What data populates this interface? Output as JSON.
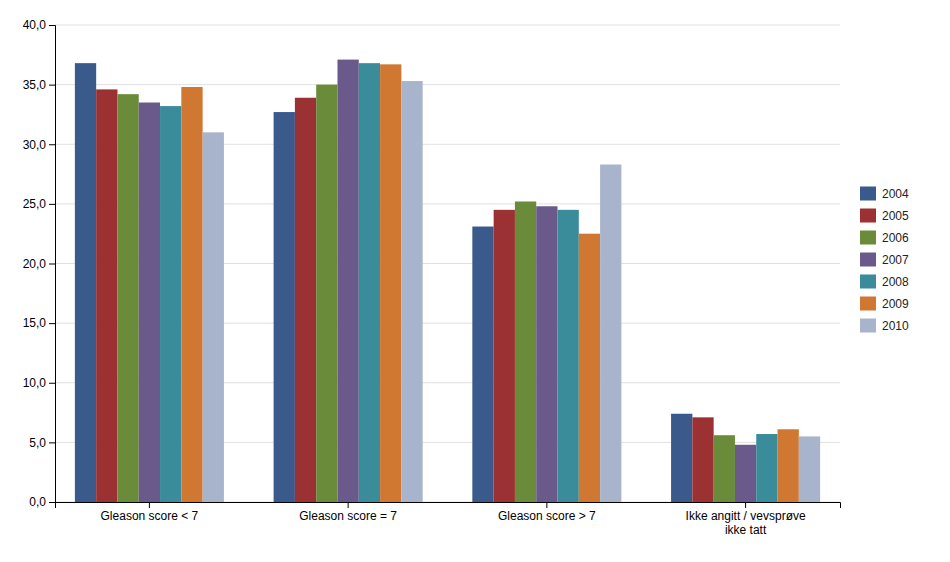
{
  "chart_data": {
    "type": "bar",
    "categories": [
      "Gleason score < 7",
      "Gleason score = 7",
      "Gleason score > 7",
      "Ikke angitt / vevsprøve\nikke tatt"
    ],
    "series": [
      {
        "name": "2004",
        "color": "#3A5A8C",
        "values": [
          36.8,
          32.7,
          23.1,
          7.4
        ]
      },
      {
        "name": "2005",
        "color": "#9B3132",
        "values": [
          34.6,
          33.9,
          24.5,
          7.1
        ]
      },
      {
        "name": "2006",
        "color": "#6A8C3A",
        "values": [
          34.2,
          35.0,
          25.2,
          5.6
        ]
      },
      {
        "name": "2007",
        "color": "#6A5A8C",
        "values": [
          33.5,
          37.1,
          24.8,
          4.8
        ]
      },
      {
        "name": "2008",
        "color": "#3A8C9B",
        "values": [
          33.2,
          36.8,
          24.5,
          5.7
        ]
      },
      {
        "name": "2009",
        "color": "#D07832",
        "values": [
          34.8,
          36.7,
          22.5,
          6.1
        ]
      },
      {
        "name": "2010",
        "color": "#A8B4CC",
        "values": [
          31.0,
          35.3,
          28.3,
          5.5
        ]
      }
    ],
    "ylim": [
      0,
      40
    ],
    "yticks": [
      {
        "value": 0,
        "label": "0,0"
      },
      {
        "value": 5,
        "label": "5,0"
      },
      {
        "value": 10,
        "label": "10,0"
      },
      {
        "value": 15,
        "label": "15,0"
      },
      {
        "value": 20,
        "label": "20,0"
      },
      {
        "value": 25,
        "label": "25,0"
      },
      {
        "value": 30,
        "label": "30,0"
      },
      {
        "value": 35,
        "label": "35,0"
      },
      {
        "value": 40,
        "label": "40,0"
      }
    ],
    "grid": true,
    "legend": "right"
  }
}
